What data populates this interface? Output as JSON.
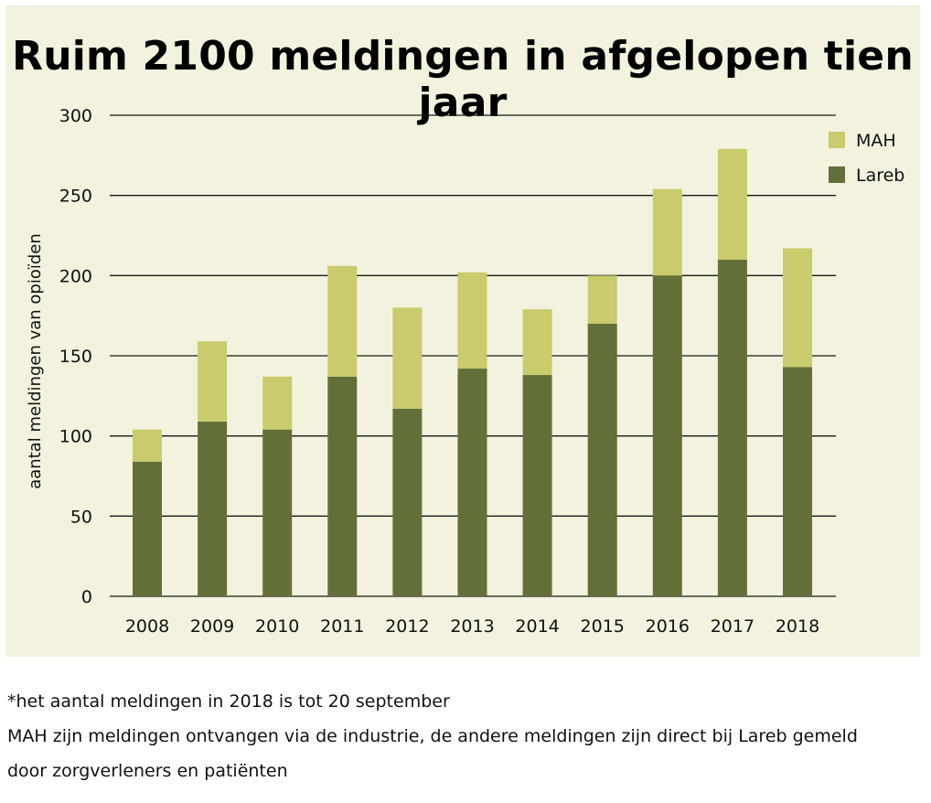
{
  "chart_data": {
    "type": "bar",
    "stacked": true,
    "title": "Ruim 2100 meldingen in afgelopen tien jaar",
    "ylabel": "aantal meldingen van opioïden",
    "xlabel": "",
    "ylim": [
      0,
      300
    ],
    "yticks": [
      0,
      50,
      100,
      150,
      200,
      250,
      300
    ],
    "grid": true,
    "legend_position": "top-right",
    "categories": [
      "2008",
      "2009",
      "2010",
      "2011",
      "2012",
      "2013",
      "2014",
      "2015",
      "2016",
      "2017",
      "2018"
    ],
    "series": [
      {
        "name": "Lareb",
        "color": "#636f38",
        "values": [
          84,
          109,
          104,
          137,
          117,
          142,
          138,
          170,
          200,
          210,
          143
        ]
      },
      {
        "name": "MAH",
        "color": "#c9cb6c",
        "values": [
          20,
          50,
          33,
          69,
          63,
          60,
          41,
          30,
          54,
          69,
          74
        ]
      }
    ],
    "legend_order": [
      "MAH",
      "Lareb"
    ]
  },
  "footnotes": {
    "line1": "*het aantal meldingen in 2018 is tot 20 september",
    "line2": "MAH zijn meldingen ontvangen via de industrie, de andere meldingen zijn direct bij Lareb gemeld",
    "line3": "door zorgverleners en patiënten"
  },
  "colors": {
    "panel_background": "#f2f2de",
    "grid_line": "#1a1a1a"
  }
}
